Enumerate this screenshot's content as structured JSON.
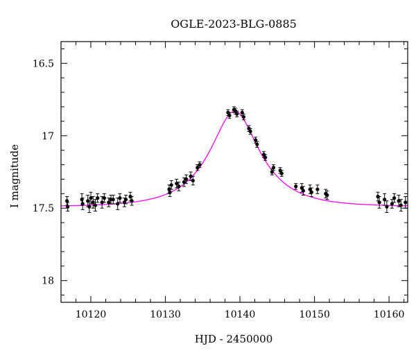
{
  "chart_data": {
    "type": "scatter",
    "title": "OGLE-2023-BLG-0885",
    "xlabel": "HJD - 2450000",
    "ylabel": "I magnitude",
    "xlim": [
      10116.0,
      10162.5
    ],
    "ylim": [
      18.15,
      16.35
    ],
    "y_inverted": true,
    "xticks_major": [
      10120,
      10130,
      10140,
      10150,
      10160
    ],
    "xtick_labels": [
      "10120",
      "10130",
      "10140",
      "10150",
      "10160"
    ],
    "yticks_major": [
      16.5,
      17,
      17.5,
      18
    ],
    "ytick_labels": [
      "16.5",
      "17",
      "17.5",
      "18"
    ],
    "model_color": "#ff00ff",
    "point_color": "#000000",
    "model": {
      "t0": 10139.3,
      "u0": 0.45,
      "tE": 6.5,
      "baseline": 17.49
    },
    "series": [
      {
        "points": [
          {
            "x": 10116.8,
            "y": 17.45,
            "e": 0.03
          },
          {
            "x": 10116.9,
            "y": 17.49,
            "e": 0.03
          },
          {
            "x": 10118.8,
            "y": 17.44,
            "e": 0.04
          },
          {
            "x": 10118.9,
            "y": 17.47,
            "e": 0.04
          },
          {
            "x": 10119.6,
            "y": 17.45,
            "e": 0.04
          },
          {
            "x": 10119.8,
            "y": 17.49,
            "e": 0.04
          },
          {
            "x": 10120.0,
            "y": 17.43,
            "e": 0.04
          },
          {
            "x": 10120.3,
            "y": 17.46,
            "e": 0.04
          },
          {
            "x": 10120.6,
            "y": 17.48,
            "e": 0.04
          },
          {
            "x": 10120.9,
            "y": 17.43,
            "e": 0.03
          },
          {
            "x": 10121.5,
            "y": 17.46,
            "e": 0.04
          },
          {
            "x": 10121.8,
            "y": 17.43,
            "e": 0.03
          },
          {
            "x": 10122.4,
            "y": 17.46,
            "e": 0.03
          },
          {
            "x": 10122.7,
            "y": 17.44,
            "e": 0.03
          },
          {
            "x": 10123.0,
            "y": 17.44,
            "e": 0.03
          },
          {
            "x": 10123.6,
            "y": 17.47,
            "e": 0.04
          },
          {
            "x": 10123.9,
            "y": 17.43,
            "e": 0.03
          },
          {
            "x": 10124.5,
            "y": 17.46,
            "e": 0.03
          },
          {
            "x": 10124.7,
            "y": 17.44,
            "e": 0.03
          },
          {
            "x": 10125.3,
            "y": 17.42,
            "e": 0.03
          },
          {
            "x": 10125.5,
            "y": 17.45,
            "e": 0.03
          },
          {
            "x": 10130.5,
            "y": 17.37,
            "e": 0.03
          },
          {
            "x": 10130.6,
            "y": 17.39,
            "e": 0.03
          },
          {
            "x": 10130.8,
            "y": 17.34,
            "e": 0.03
          },
          {
            "x": 10131.5,
            "y": 17.33,
            "e": 0.03
          },
          {
            "x": 10131.8,
            "y": 17.35,
            "e": 0.03
          },
          {
            "x": 10132.5,
            "y": 17.32,
            "e": 0.03
          },
          {
            "x": 10132.8,
            "y": 17.3,
            "e": 0.03
          },
          {
            "x": 10133.4,
            "y": 17.28,
            "e": 0.03
          },
          {
            "x": 10133.7,
            "y": 17.31,
            "e": 0.03
          },
          {
            "x": 10134.3,
            "y": 17.22,
            "e": 0.02
          },
          {
            "x": 10134.6,
            "y": 17.2,
            "e": 0.02
          },
          {
            "x": 10138.4,
            "y": 16.84,
            "e": 0.02
          },
          {
            "x": 10138.6,
            "y": 16.86,
            "e": 0.02
          },
          {
            "x": 10139.2,
            "y": 16.82,
            "e": 0.02
          },
          {
            "x": 10139.4,
            "y": 16.83,
            "e": 0.02
          },
          {
            "x": 10139.6,
            "y": 16.85,
            "e": 0.02
          },
          {
            "x": 10140.3,
            "y": 16.84,
            "e": 0.02
          },
          {
            "x": 10140.5,
            "y": 16.87,
            "e": 0.02
          },
          {
            "x": 10141.2,
            "y": 16.95,
            "e": 0.02
          },
          {
            "x": 10141.4,
            "y": 16.97,
            "e": 0.02
          },
          {
            "x": 10142.1,
            "y": 17.03,
            "e": 0.02
          },
          {
            "x": 10142.3,
            "y": 17.06,
            "e": 0.02
          },
          {
            "x": 10143.2,
            "y": 17.13,
            "e": 0.02
          },
          {
            "x": 10143.4,
            "y": 17.15,
            "e": 0.02
          },
          {
            "x": 10144.3,
            "y": 17.25,
            "e": 0.02
          },
          {
            "x": 10144.5,
            "y": 17.22,
            "e": 0.02
          },
          {
            "x": 10145.4,
            "y": 17.24,
            "e": 0.02
          },
          {
            "x": 10145.6,
            "y": 17.26,
            "e": 0.02
          },
          {
            "x": 10147.5,
            "y": 17.35,
            "e": 0.02
          },
          {
            "x": 10148.3,
            "y": 17.36,
            "e": 0.03
          },
          {
            "x": 10148.5,
            "y": 17.38,
            "e": 0.03
          },
          {
            "x": 10149.4,
            "y": 17.37,
            "e": 0.03
          },
          {
            "x": 10149.6,
            "y": 17.39,
            "e": 0.03
          },
          {
            "x": 10150.4,
            "y": 17.37,
            "e": 0.03
          },
          {
            "x": 10151.5,
            "y": 17.4,
            "e": 0.03
          },
          {
            "x": 10151.7,
            "y": 17.41,
            "e": 0.03
          },
          {
            "x": 10158.5,
            "y": 17.42,
            "e": 0.03
          },
          {
            "x": 10158.7,
            "y": 17.46,
            "e": 0.04
          },
          {
            "x": 10159.4,
            "y": 17.44,
            "e": 0.04
          },
          {
            "x": 10159.7,
            "y": 17.49,
            "e": 0.04
          },
          {
            "x": 10160.4,
            "y": 17.47,
            "e": 0.03
          },
          {
            "x": 10160.7,
            "y": 17.43,
            "e": 0.03
          },
          {
            "x": 10161.3,
            "y": 17.45,
            "e": 0.04
          },
          {
            "x": 10161.6,
            "y": 17.48,
            "e": 0.04
          },
          {
            "x": 10162.2,
            "y": 17.46,
            "e": 0.04
          }
        ]
      }
    ]
  }
}
